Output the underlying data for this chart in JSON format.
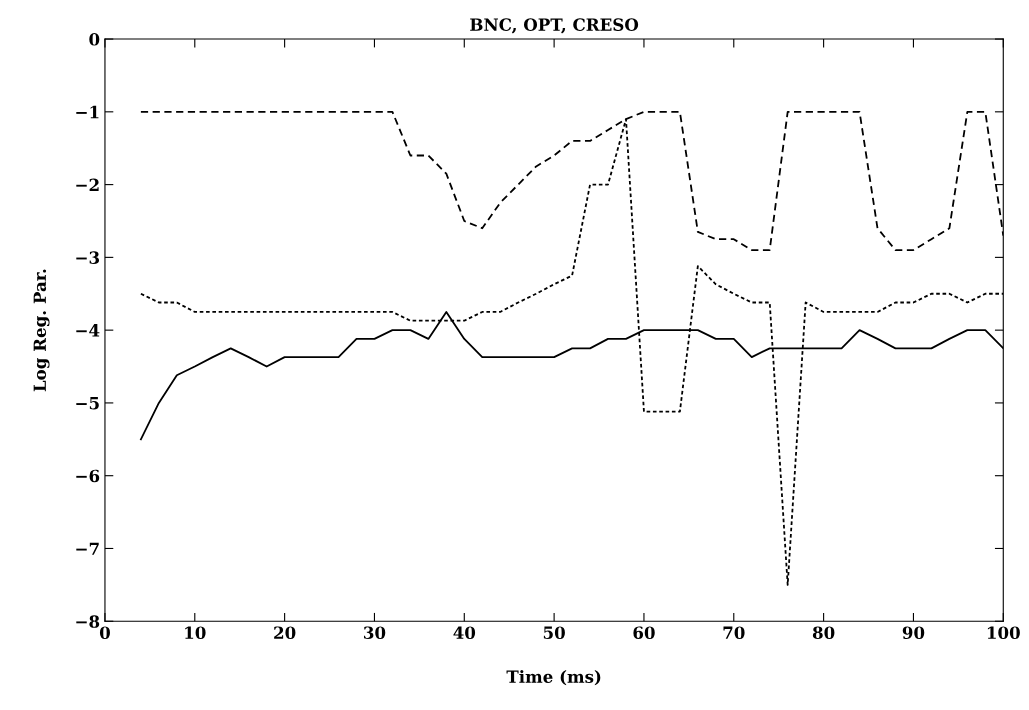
{
  "chart_data": {
    "type": "line",
    "title": "BNC, OPT, CRESO",
    "xlabel": "Time (ms)",
    "ylabel": "Log Reg. Par.",
    "x": [
      4,
      6,
      8,
      10,
      12,
      14,
      16,
      18,
      20,
      22,
      24,
      26,
      28,
      30,
      32,
      34,
      36,
      38,
      40,
      42,
      44,
      46,
      48,
      50,
      52,
      54,
      56,
      58,
      60,
      62,
      64,
      66,
      68,
      70,
      72,
      74,
      76,
      78,
      80,
      82,
      84,
      86,
      88,
      90,
      92,
      94,
      96,
      98,
      100
    ],
    "series": [
      {
        "color": "#000000",
        "line_style": "dashed",
        "values": [
          -1,
          -1,
          -1,
          -1,
          -1,
          -1,
          -1,
          -1,
          -1,
          -1,
          -1,
          -1,
          -1,
          -1,
          -1,
          -1.6,
          -1.6,
          -1.85,
          -2.5,
          -2.6,
          -2.25,
          -2.0,
          -1.75,
          -1.6,
          -1.4,
          -1.4,
          -1.25,
          -1.1,
          -1,
          -1,
          -1,
          -2.65,
          -2.75,
          -2.75,
          -2.9,
          -2.9,
          -1,
          -1,
          -1,
          -1,
          -1,
          -2.6,
          -2.9,
          -2.9,
          -2.75,
          -2.6,
          -1,
          -1,
          -2.7
        ]
      },
      {
        "color": "#000000",
        "line_style": "dotted",
        "values": [
          -3.5,
          -3.62,
          -3.62,
          -3.75,
          -3.75,
          -3.75,
          -3.75,
          -3.75,
          -3.75,
          -3.75,
          -3.75,
          -3.75,
          -3.75,
          -3.75,
          -3.75,
          -3.87,
          -3.87,
          -3.87,
          -3.87,
          -3.75,
          -3.75,
          -3.62,
          -3.5,
          -3.37,
          -3.25,
          -2.0,
          -2.0,
          -1.1,
          -5.12,
          -5.12,
          -5.12,
          -3.12,
          -3.37,
          -3.5,
          -3.62,
          -3.62,
          -7.5,
          -3.62,
          -3.75,
          -3.75,
          -3.75,
          -3.75,
          -3.62,
          -3.62,
          -3.5,
          -3.5,
          -3.62,
          -3.5,
          -3.5
        ]
      },
      {
        "color": "#000000",
        "line_style": "solid",
        "values": [
          -5.5,
          -5.0,
          -4.62,
          -4.5,
          -4.37,
          -4.25,
          -4.37,
          -4.5,
          -4.37,
          -4.37,
          -4.37,
          -4.37,
          -4.12,
          -4.12,
          -4.0,
          -4.0,
          -4.12,
          -3.75,
          -4.12,
          -4.37,
          -4.37,
          -4.37,
          -4.37,
          -4.37,
          -4.25,
          -4.25,
          -4.12,
          -4.12,
          -4.0,
          -4.0,
          -4.0,
          -4.0,
          -4.12,
          -4.12,
          -4.37,
          -4.25,
          -4.25,
          -4.25,
          -4.25,
          -4.25,
          -4.0,
          -4.12,
          -4.25,
          -4.25,
          -4.25,
          -4.12,
          -4.0,
          -4.0,
          -4.25
        ]
      }
    ],
    "xlim": [
      0,
      100
    ],
    "ylim": [
      -8,
      0
    ],
    "xticks": [
      0,
      10,
      20,
      30,
      40,
      50,
      60,
      70,
      80,
      90,
      100
    ],
    "yticks": [
      {
        "value": -8,
        "label": "−8"
      },
      {
        "value": -7,
        "label": "−7"
      },
      {
        "value": -6,
        "label": "−6"
      },
      {
        "value": -5,
        "label": "−5"
      },
      {
        "value": -4,
        "label": "−4"
      },
      {
        "value": -3,
        "label": "−3"
      },
      {
        "value": -2,
        "label": "−2"
      },
      {
        "value": -1,
        "label": "−1"
      },
      0
    ],
    "grid": false
  }
}
